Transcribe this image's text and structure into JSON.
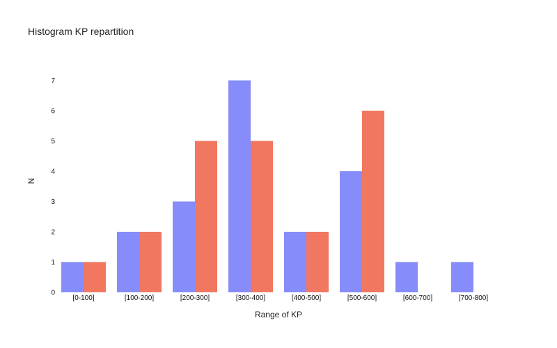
{
  "chart_data": {
    "type": "bar",
    "title": "Histogram KP repartition",
    "xlabel": "Range of KP",
    "ylabel": "N",
    "categories": [
      "[0-100]",
      "[100-200]",
      "[200-300]",
      "[300-400]",
      "[400-500]",
      "[500-600]",
      "[600-700]",
      "[700-800]"
    ],
    "series": [
      {
        "values": [
          1,
          2,
          3,
          7,
          2,
          4,
          1,
          1
        ],
        "color": "#868cfa"
      },
      {
        "values": [
          1,
          2,
          5,
          5,
          2,
          6,
          0,
          0
        ],
        "color": "#f27761"
      }
    ],
    "ylim": [
      0,
      7
    ],
    "yticks": [
      0,
      1,
      2,
      3,
      4,
      5,
      6,
      7
    ],
    "grid": false,
    "legend": "none"
  }
}
